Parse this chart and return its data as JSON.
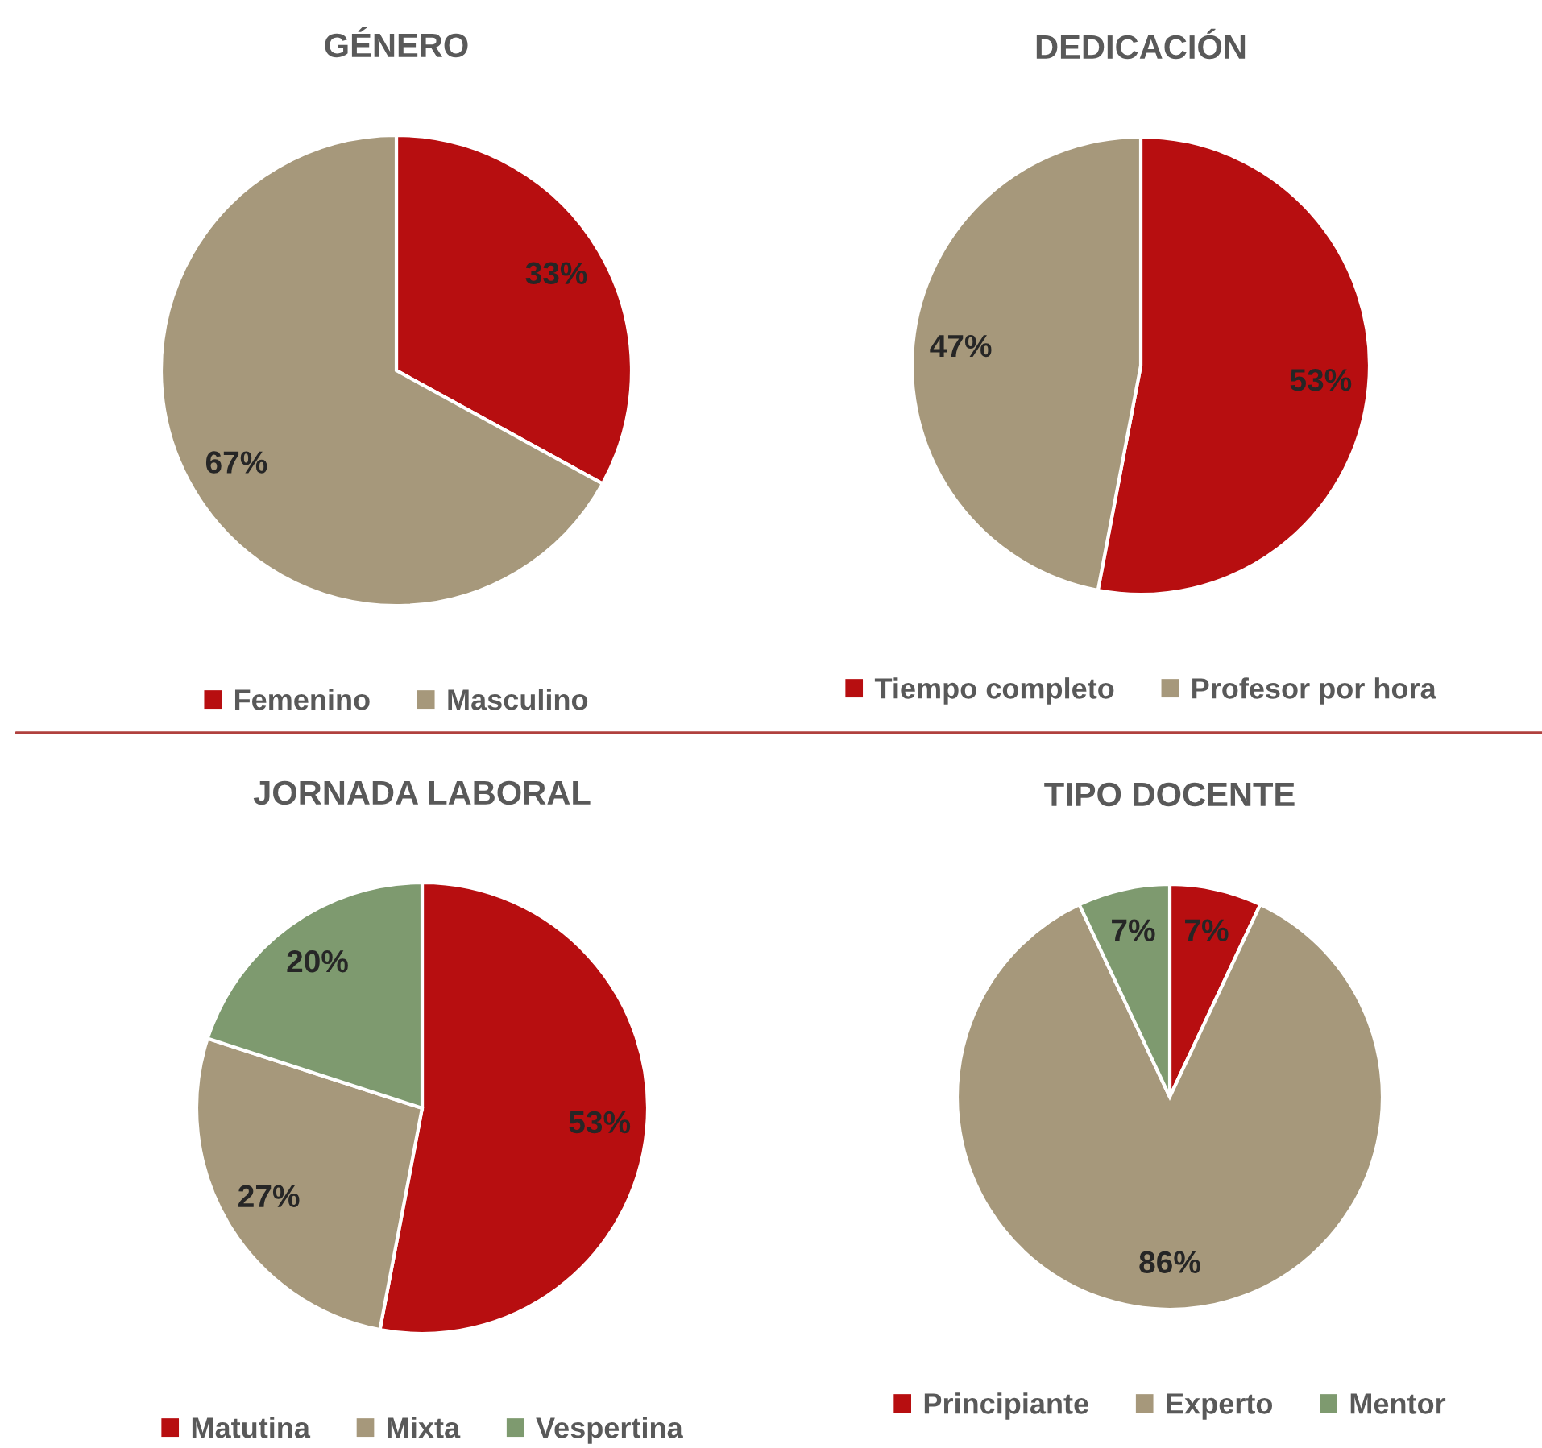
{
  "chart_data": [
    {
      "type": "pie",
      "title": "GÉNERO",
      "categories": [
        "Femenino",
        "Masculino"
      ],
      "values": [
        33,
        67
      ],
      "colors": [
        "#b70e10",
        "#a6987b"
      ],
      "value_labels": [
        "33%",
        "67%"
      ],
      "legend": "bottom"
    },
    {
      "type": "pie",
      "title": "DEDICACIÓN",
      "categories": [
        "Tiempo completo",
        "Profesor por hora"
      ],
      "values": [
        53,
        47
      ],
      "colors": [
        "#b70e10",
        "#a6987b"
      ],
      "value_labels": [
        "53%",
        "47%"
      ],
      "legend": "bottom"
    },
    {
      "type": "pie",
      "title": "JORNADA LABORAL",
      "categories": [
        "Matutina",
        "Mixta",
        "Vespertina"
      ],
      "values": [
        53,
        27,
        20
      ],
      "colors": [
        "#b70e10",
        "#a6987b",
        "#7e9a6f"
      ],
      "value_labels": [
        "53%",
        "27%",
        "20%"
      ],
      "legend": "bottom"
    },
    {
      "type": "pie",
      "title": "TIPO DOCENTE",
      "categories": [
        "Principiante",
        "Experto",
        "Mentor"
      ],
      "values": [
        7,
        86,
        7
      ],
      "colors": [
        "#b70e10",
        "#a6987b",
        "#7e9a6f"
      ],
      "value_labels": [
        "7%",
        "86%",
        "7%"
      ],
      "legend": "bottom"
    }
  ]
}
